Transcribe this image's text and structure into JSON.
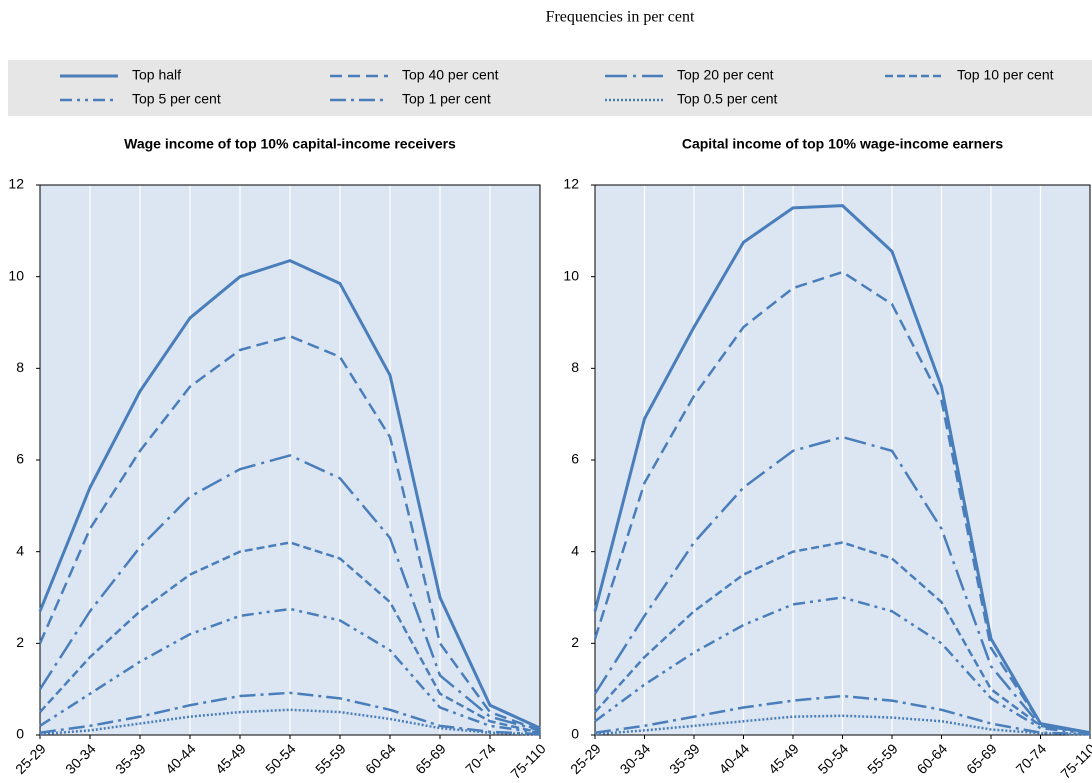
{
  "title": "Frequencies in per cent",
  "chart_data": [
    {
      "type": "line",
      "title": "Wage income of top 10% capital-income receivers",
      "categories": [
        "25-29",
        "30-34",
        "35-39",
        "40-44",
        "45-49",
        "50-54",
        "55-59",
        "60-64",
        "65-69",
        "70-74",
        "75-110"
      ],
      "ylim": [
        0,
        12
      ],
      "yticks": [
        0,
        2,
        4,
        6,
        8,
        10,
        12
      ],
      "grid": true,
      "series": [
        {
          "name": "Top half",
          "color": "#4a7ebb",
          "style": "solid",
          "values": [
            2.7,
            5.4,
            7.5,
            9.1,
            10.0,
            10.35,
            9.85,
            7.85,
            3.0,
            0.65,
            0.15
          ]
        },
        {
          "name": "Top 40 per cent",
          "color": "#4a7ebb",
          "style": "dashed",
          "values": [
            2.0,
            4.5,
            6.2,
            7.6,
            8.4,
            8.7,
            8.25,
            6.5,
            2.0,
            0.5,
            0.1
          ]
        },
        {
          "name": "Top 20 per cent",
          "color": "#4a7ebb",
          "style": "dash-dot",
          "values": [
            1.0,
            2.7,
            4.1,
            5.2,
            5.8,
            6.1,
            5.6,
            4.3,
            1.3,
            0.4,
            0.1
          ]
        },
        {
          "name": "Top 10 per cent",
          "color": "#4a7ebb",
          "style": "short-dash",
          "values": [
            0.5,
            1.7,
            2.7,
            3.5,
            4.0,
            4.2,
            3.85,
            2.9,
            0.9,
            0.3,
            0.05
          ]
        },
        {
          "name": "Top 5 per cent",
          "color": "#4a7ebb",
          "style": "dash-dot-dot",
          "values": [
            0.2,
            0.9,
            1.6,
            2.2,
            2.6,
            2.75,
            2.5,
            1.85,
            0.6,
            0.2,
            0.05
          ]
        },
        {
          "name": "Top 1 per cent",
          "color": "#4a7ebb",
          "style": "long-dash-dot",
          "values": [
            0.05,
            0.2,
            0.4,
            0.65,
            0.85,
            0.92,
            0.8,
            0.55,
            0.2,
            0.07,
            0.02
          ]
        },
        {
          "name": "Top 0.5 per cent",
          "color": "#4a7ebb",
          "style": "dotted",
          "values": [
            0.02,
            0.1,
            0.25,
            0.4,
            0.5,
            0.55,
            0.5,
            0.35,
            0.15,
            0.05,
            0.01
          ]
        }
      ]
    },
    {
      "type": "line",
      "title": "Capital income of top 10% wage-income earners",
      "categories": [
        "25-29",
        "30-34",
        "35-39",
        "40-44",
        "45-49",
        "50-54",
        "55-59",
        "60-64",
        "65-69",
        "70-74",
        "75-110"
      ],
      "ylim": [
        0,
        12
      ],
      "yticks": [
        0,
        2,
        4,
        6,
        8,
        10,
        12
      ],
      "grid": true,
      "series": [
        {
          "color": "#4a7ebb",
          "style": "solid",
          "values": [
            2.7,
            6.9,
            8.9,
            10.75,
            11.5,
            11.55,
            10.55,
            7.6,
            2.1,
            0.25,
            0.05
          ]
        },
        {
          "color": "#4a7ebb",
          "style": "dashed",
          "values": [
            2.1,
            5.5,
            7.4,
            8.9,
            9.75,
            10.1,
            9.4,
            7.3,
            1.9,
            0.25,
            0.05
          ]
        },
        {
          "color": "#4a7ebb",
          "style": "dash-dot",
          "values": [
            0.9,
            2.6,
            4.2,
            5.4,
            6.2,
            6.5,
            6.2,
            4.5,
            1.5,
            0.2,
            0.05
          ]
        },
        {
          "color": "#4a7ebb",
          "style": "short-dash",
          "values": [
            0.5,
            1.7,
            2.7,
            3.5,
            4.0,
            4.2,
            3.85,
            2.9,
            1.0,
            0.2,
            0.05
          ]
        },
        {
          "color": "#4a7ebb",
          "style": "dash-dot-dot",
          "values": [
            0.3,
            1.1,
            1.8,
            2.4,
            2.85,
            3.0,
            2.7,
            2.0,
            0.8,
            0.15,
            0.03
          ]
        },
        {
          "color": "#4a7ebb",
          "style": "long-dash-dot",
          "values": [
            0.05,
            0.2,
            0.4,
            0.6,
            0.75,
            0.85,
            0.75,
            0.55,
            0.25,
            0.05,
            0.02
          ]
        },
        {
          "color": "#4a7ebb",
          "style": "dotted",
          "values": [
            0.02,
            0.1,
            0.2,
            0.3,
            0.4,
            0.42,
            0.38,
            0.3,
            0.12,
            0.04,
            0.01
          ]
        }
      ]
    }
  ]
}
